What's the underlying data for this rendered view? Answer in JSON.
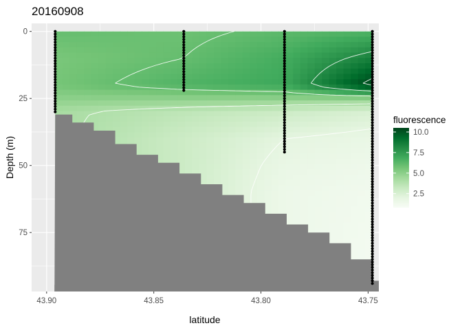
{
  "chart_data": {
    "type": "heatmap",
    "title": "20160908",
    "xlabel": "latitude",
    "ylabel": "Depth (m)",
    "x_axis": {
      "reversed": true,
      "range": [
        43.907,
        43.745
      ],
      "ticks": [
        43.9,
        43.85,
        43.8,
        43.75
      ],
      "tick_labels": [
        "43.90",
        "43.85",
        "43.80",
        "43.75"
      ]
    },
    "y_axis": {
      "reversed": true,
      "range": [
        -3,
        97
      ],
      "ticks": [
        0,
        25,
        50,
        75
      ],
      "tick_labels": [
        "0",
        "25",
        "50",
        "75"
      ]
    },
    "grid": true,
    "legend": {
      "title": "fluorescence",
      "position": "right",
      "range": [
        0.8,
        10.5
      ],
      "ticks": [
        2.5,
        5.0,
        7.5,
        10.0
      ],
      "tick_labels": [
        "2.5",
        "5.0",
        "7.5",
        "10.0"
      ],
      "color_low": "#F7FCF5",
      "color_high": "#00441B"
    },
    "stations": [
      {
        "latitude": 43.896,
        "max_depth": 30
      },
      {
        "latitude": 43.836,
        "max_depth": 22
      },
      {
        "latitude": 43.789,
        "max_depth": 45
      },
      {
        "latitude": 43.748,
        "max_depth": 94
      }
    ],
    "bathymetry": {
      "fill": "#808080",
      "profile": [
        [
          43.896,
          31
        ],
        [
          43.888,
          34
        ],
        [
          43.878,
          37
        ],
        [
          43.868,
          42
        ],
        [
          43.858,
          46
        ],
        [
          43.848,
          49
        ],
        [
          43.838,
          53
        ],
        [
          43.828,
          57
        ],
        [
          43.818,
          61
        ],
        [
          43.808,
          64
        ],
        [
          43.798,
          68
        ],
        [
          43.788,
          72
        ],
        [
          43.778,
          75
        ],
        [
          43.768,
          79
        ],
        [
          43.758,
          85
        ],
        [
          43.748,
          93
        ]
      ]
    },
    "field_samples": [
      {
        "latitude": 43.896,
        "depths": [
          0,
          10,
          20,
          25,
          30
        ],
        "values": [
          6.0,
          5.5,
          5.6,
          5.0,
          4.2
        ]
      },
      {
        "latitude": 43.836,
        "depths": [
          0,
          10,
          20,
          25,
          30,
          40
        ],
        "values": [
          5.8,
          6.0,
          6.5,
          5.0,
          3.5,
          3.0
        ]
      },
      {
        "latitude": 43.789,
        "depths": [
          0,
          10,
          20,
          25,
          30,
          40,
          50,
          60
        ],
        "values": [
          6.2,
          6.8,
          7.0,
          5.0,
          3.0,
          2.0,
          1.7,
          1.5
        ]
      },
      {
        "latitude": 43.748,
        "depths": [
          0,
          10,
          20,
          25,
          30,
          40,
          50,
          60,
          75,
          94
        ],
        "values": [
          6.5,
          8.5,
          10.5,
          5.0,
          2.5,
          1.7,
          1.4,
          1.2,
          1.1,
          1.0
        ]
      }
    ],
    "contour_levels": [
      2,
      4,
      6,
      8,
      10
    ]
  }
}
